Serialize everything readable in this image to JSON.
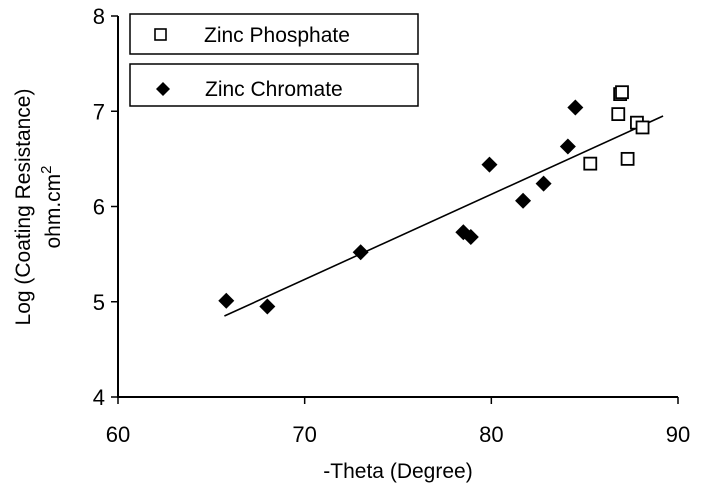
{
  "chart_data": {
    "type": "scatter",
    "xlabel": "-Theta (Degree)",
    "ylabel_line1": "Log (Coating Resistance)",
    "ylabel_line2": "ohm.cm",
    "ylabel_superscript": "2",
    "xlim": [
      60,
      90
    ],
    "ylim": [
      4,
      8
    ],
    "xticks": [
      60,
      70,
      80,
      90
    ],
    "yticks": [
      4,
      5,
      6,
      7,
      8
    ],
    "grid": false,
    "legend_position": "top-left",
    "series": [
      {
        "name": "Zinc Phosphate",
        "marker": "open-square",
        "color": "#000000",
        "points": [
          [
            85.3,
            6.45
          ],
          [
            86.8,
            6.97
          ],
          [
            86.9,
            7.18
          ],
          [
            87.0,
            7.2
          ],
          [
            87.3,
            6.5
          ],
          [
            87.8,
            6.88
          ],
          [
            88.1,
            6.83
          ]
        ]
      },
      {
        "name": "Zinc Chromate",
        "marker": "filled-diamond",
        "color": "#000000",
        "points": [
          [
            65.8,
            5.01
          ],
          [
            68.0,
            4.95
          ],
          [
            73.0,
            5.52
          ],
          [
            78.5,
            5.73
          ],
          [
            78.9,
            5.68
          ],
          [
            79.9,
            6.44
          ],
          [
            81.7,
            6.06
          ],
          [
            82.8,
            6.24
          ],
          [
            84.1,
            6.63
          ],
          [
            84.5,
            7.04
          ]
        ]
      }
    ],
    "trendline": {
      "x": [
        65.7,
        89.2
      ],
      "y": [
        4.85,
        6.95
      ]
    }
  }
}
